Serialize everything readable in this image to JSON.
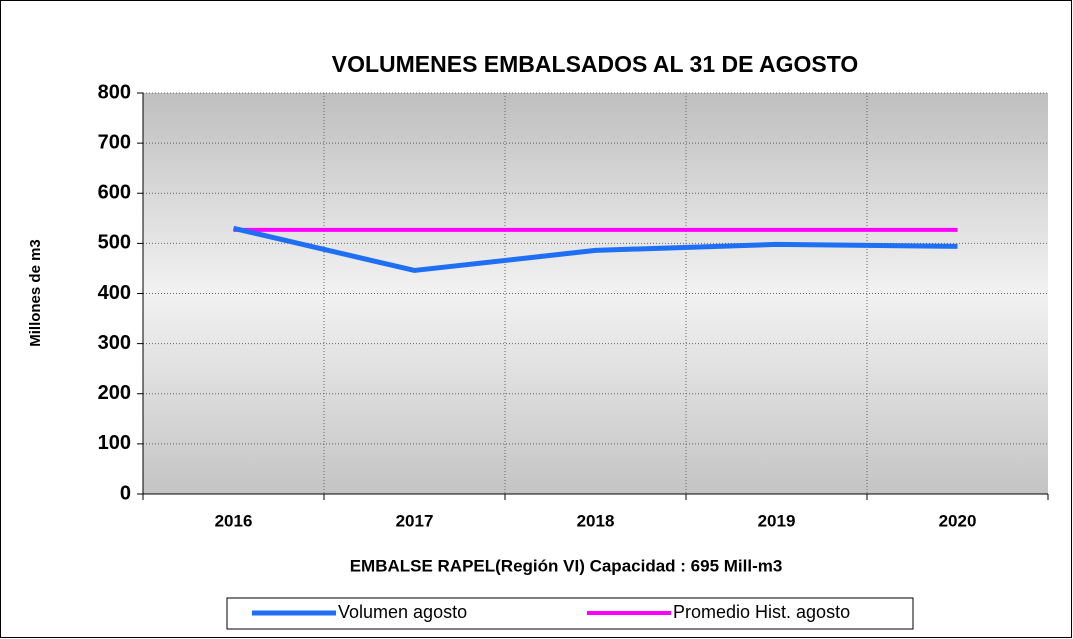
{
  "chart_data": {
    "type": "line",
    "title": "VOLUMENES EMBALSADOS  AL 31 DE AGOSTO",
    "x_label": "EMBALSE RAPEL(Región VI)  Capacidad : 695 Mill-m3",
    "y_label": "Millones de m3",
    "categories": [
      "2016",
      "2017",
      "2018",
      "2019",
      "2020"
    ],
    "series": [
      {
        "name": "Volumen agosto",
        "color": "#1f6ff5",
        "values": [
          530,
          446,
          486,
          498,
          494
        ]
      },
      {
        "name": "Promedio Hist. agosto",
        "color": "#ff00ff",
        "values": [
          527,
          527,
          527,
          527,
          527
        ]
      }
    ],
    "ylim": [
      0,
      800
    ],
    "yticks": [
      0,
      100,
      200,
      300,
      400,
      500,
      600,
      700,
      800
    ],
    "grid": true,
    "legend": "bottom"
  }
}
